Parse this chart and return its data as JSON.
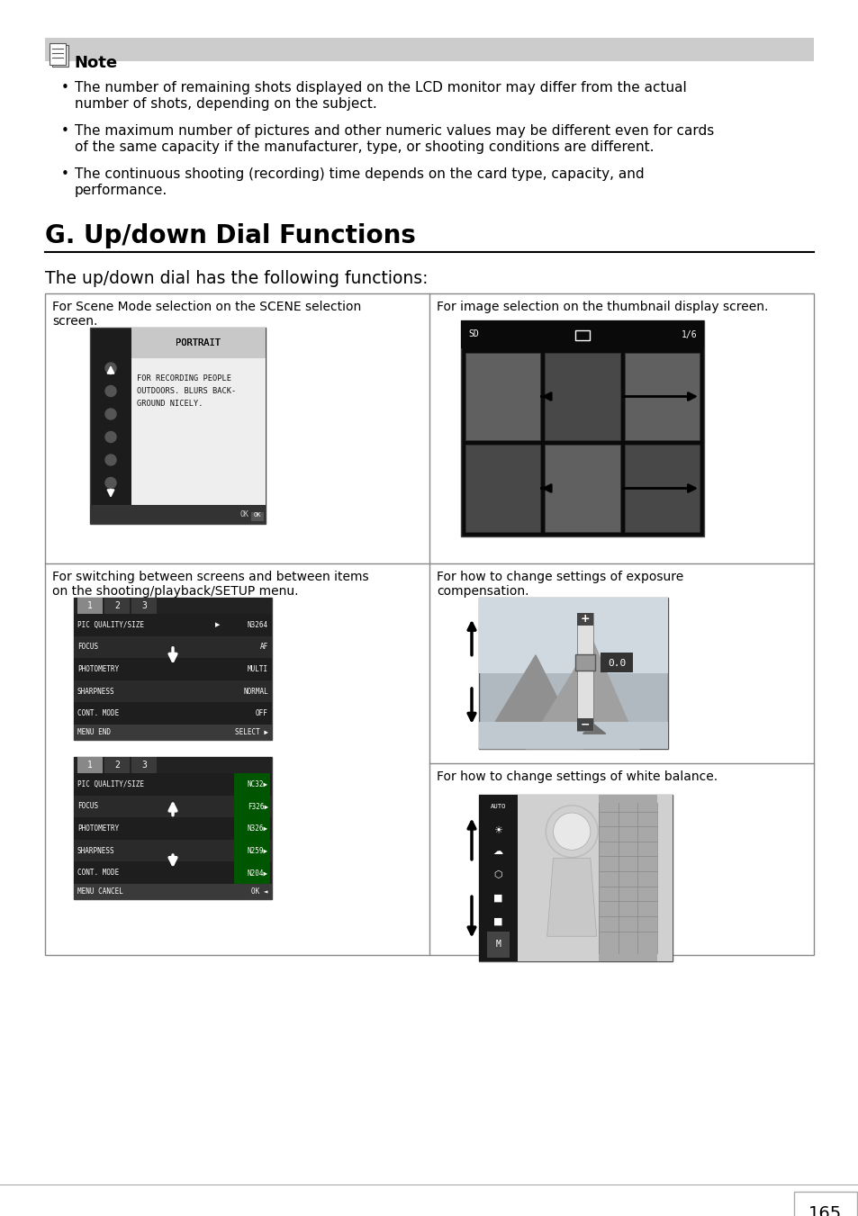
{
  "bg_color": "#ffffff",
  "note_bar_color": "#cccccc",
  "note_title": "Note",
  "note_bullets": [
    "The number of remaining shots displayed on the LCD monitor may differ from the actual\nnumber of shots, depending on the subject.",
    "The maximum number of pictures and other numeric values may be different even for cards\nof the same capacity if the manufacturer, type, or shooting conditions are different.",
    "The continuous shooting (recording) time depends on the card type, capacity, and\nperformance."
  ],
  "section_title": "G. Up/down Dial Functions",
  "subtitle": "The up/down dial has the following functions:",
  "page_number": "165",
  "table_border_color": "#555555",
  "text_color": "#000000"
}
